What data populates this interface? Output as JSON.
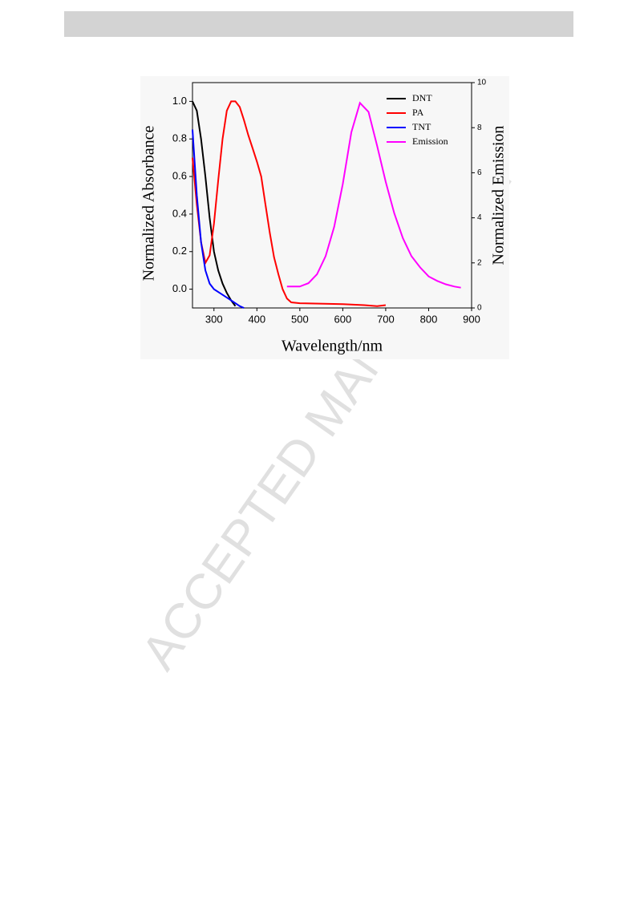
{
  "watermark": "ACCEPTED MANUSCRIPT",
  "chart_data": {
    "type": "line",
    "x_label": "Wavelength/nm",
    "y_label": "Normalized Absorbance",
    "y2_label": "Normalized Emission",
    "xlim": [
      250,
      900
    ],
    "xticks": [
      300,
      400,
      500,
      600,
      700,
      800,
      900
    ],
    "ylim": [
      -0.1,
      1.1
    ],
    "yticks": [
      {
        "value": 0,
        "label": "0.0"
      },
      0.2,
      0.4,
      0.6,
      0.8,
      {
        "value": 1,
        "label": "1.0"
      }
    ],
    "y2lim": [
      0,
      10
    ],
    "y2ticks": [
      0,
      2,
      4,
      6,
      8,
      10
    ],
    "legend": "upper right",
    "series": [
      {
        "name": "DNT",
        "color": "#000000",
        "x": [
          250,
          260,
          270,
          280,
          290,
          300,
          310,
          320,
          330,
          340,
          350
        ],
        "values": [
          1.0,
          0.95,
          0.8,
          0.6,
          0.38,
          0.2,
          0.1,
          0.03,
          -0.02,
          -0.06,
          -0.09
        ]
      },
      {
        "name": "PA",
        "color": "#ff0000",
        "x": [
          250,
          260,
          270,
          280,
          290,
          300,
          310,
          320,
          330,
          340,
          350,
          360,
          370,
          380,
          390,
          400,
          410,
          420,
          430,
          440,
          450,
          460,
          470,
          480,
          500,
          600,
          650,
          680,
          700
        ],
        "values": [
          0.7,
          0.45,
          0.25,
          0.14,
          0.18,
          0.35,
          0.58,
          0.8,
          0.95,
          1.0,
          1.0,
          0.97,
          0.9,
          0.82,
          0.75,
          0.68,
          0.6,
          0.45,
          0.3,
          0.17,
          0.08,
          0.0,
          -0.05,
          -0.07,
          -0.075,
          -0.08,
          -0.085,
          -0.09,
          -0.085
        ]
      },
      {
        "name": "TNT",
        "color": "#0000ff",
        "x": [
          250,
          260,
          270,
          280,
          290,
          300,
          320,
          340,
          360,
          370
        ],
        "values": [
          0.85,
          0.5,
          0.25,
          0.1,
          0.03,
          0.0,
          -0.03,
          -0.06,
          -0.09,
          -0.1
        ]
      },
      {
        "name": "Emission",
        "color": "#ff00ff",
        "axis": "y2",
        "x": [
          470,
          500,
          520,
          540,
          560,
          580,
          600,
          620,
          640,
          660,
          680,
          700,
          720,
          740,
          760,
          780,
          800,
          820,
          840,
          860,
          875
        ],
        "values": [
          0.95,
          0.95,
          1.1,
          1.5,
          2.3,
          3.6,
          5.5,
          7.8,
          9.1,
          8.7,
          7.2,
          5.6,
          4.2,
          3.1,
          2.3,
          1.8,
          1.4,
          1.2,
          1.05,
          0.95,
          0.9
        ]
      }
    ]
  }
}
